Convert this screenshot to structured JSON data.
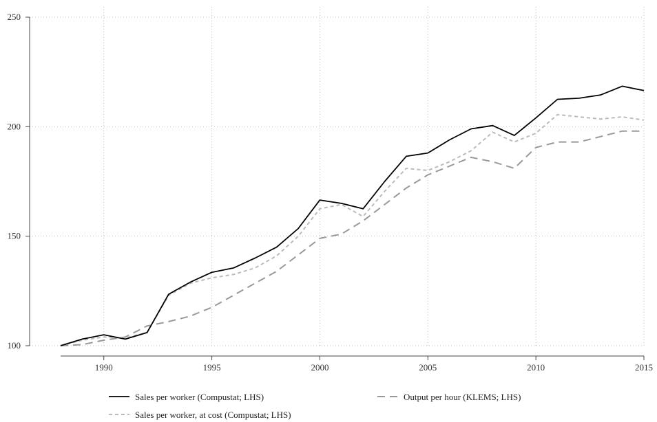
{
  "chart_data": {
    "type": "line",
    "title": "",
    "xlabel": "",
    "ylabel": "",
    "xlim": [
      1988,
      2015
    ],
    "ylim": [
      100,
      250
    ],
    "x_ticks": [
      1990,
      1995,
      2000,
      2005,
      2010,
      2015
    ],
    "y_ticks": [
      100,
      150,
      200,
      250
    ],
    "grid": "dotted",
    "legend_position": "bottom",
    "series": [
      {
        "name": "Sales per worker (Compustat; LHS)",
        "style": "solid",
        "color": "#000000",
        "x": [
          1988,
          1989,
          1990,
          1991,
          1992,
          1993,
          1994,
          1995,
          1996,
          1997,
          1998,
          1999,
          2000,
          2001,
          2002,
          2003,
          2004,
          2005,
          2006,
          2007,
          2008,
          2009,
          2010,
          2011,
          2012,
          2013,
          2014,
          2015
        ],
        "values": [
          100,
          103,
          105,
          103,
          106,
          123.5,
          129,
          133.5,
          135.5,
          140,
          145,
          153.5,
          166.5,
          165,
          162.5,
          175,
          186.5,
          188,
          194,
          199,
          200.5,
          196,
          204,
          212.5,
          213,
          214.5,
          218.5,
          216.5
        ]
      },
      {
        "name": "Output per hour (KLEMS; LHS)",
        "style": "long-dash",
        "color": "#999999",
        "x": [
          1988,
          1989,
          1990,
          1991,
          1992,
          1993,
          1994,
          1995,
          1996,
          1997,
          1998,
          1999,
          2000,
          2001,
          2002,
          2003,
          2004,
          2005,
          2006,
          2007,
          2008,
          2009,
          2010,
          2011,
          2012,
          2013,
          2014,
          2015
        ],
        "values": [
          100,
          100.5,
          102.5,
          104,
          109,
          111,
          113.5,
          117.5,
          123,
          128.5,
          134,
          141.5,
          149,
          151,
          157,
          164.5,
          172,
          178,
          182,
          186,
          184,
          181,
          190.5,
          193,
          193,
          195.5,
          198,
          198
        ]
      },
      {
        "name": "Sales per worker, at cost (Compustat; LHS)",
        "style": "short-dash",
        "color": "#bbbbbb",
        "x": [
          1988,
          1989,
          1990,
          1991,
          1992,
          1993,
          1994,
          1995,
          1996,
          1997,
          1998,
          1999,
          2000,
          2001,
          2002,
          2003,
          2004,
          2005,
          2006,
          2007,
          2008,
          2009,
          2010,
          2011,
          2012,
          2013,
          2014,
          2015
        ],
        "values": [
          100,
          102.5,
          104,
          103.5,
          106,
          123,
          128.5,
          131,
          132.5,
          135.5,
          141,
          150,
          162.5,
          164.5,
          159,
          170.5,
          181,
          180,
          184,
          189,
          197.5,
          193,
          197,
          205.5,
          204.5,
          203.5,
          204.5,
          203
        ]
      }
    ]
  }
}
